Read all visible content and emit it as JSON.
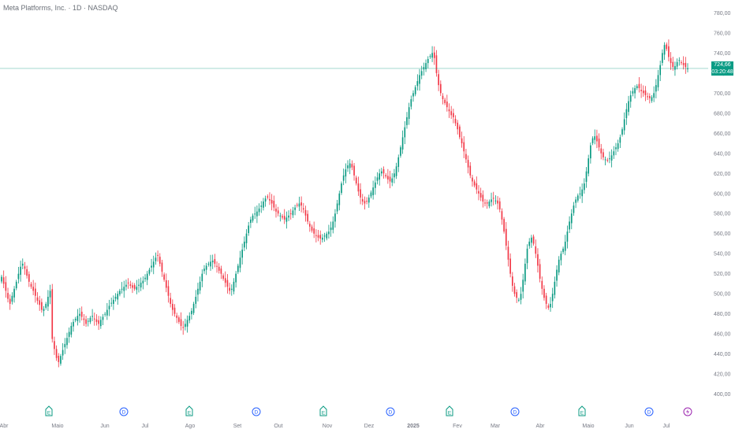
{
  "chart_data": {
    "type": "candlestick",
    "title": "Meta Platforms, Inc. · 1D · NASDAQ",
    "y_ticks": [
      780,
      760,
      740,
      720,
      700,
      680,
      660,
      640,
      620,
      600,
      580,
      560,
      540,
      520,
      500,
      480,
      460,
      440,
      420,
      400
    ],
    "y_tick_labels": [
      "780,00",
      "760,00",
      "740,00",
      "720,00",
      "700,00",
      "680,00",
      "660,00",
      "640,00",
      "620,00",
      "600,00",
      "580,00",
      "560,00",
      "540,00",
      "520,00",
      "500,00",
      "480,00",
      "460,00",
      "440,00",
      "420,00",
      "400,00"
    ],
    "ylim": [
      395,
      785
    ],
    "x_labels": [
      "Abr",
      "Maio",
      "Jun",
      "Jul",
      "Ago",
      "Set",
      "Out",
      "Nov",
      "Dez",
      "2025",
      "Fev",
      "Mar",
      "Abr",
      "Maio",
      "Jun",
      "Jul"
    ],
    "last_price": 724.66,
    "last_price_label": "724,66",
    "countdown": "03:20:48",
    "up_color": "#089981",
    "down_color": "#f23645",
    "events": [
      "E",
      "D",
      "E",
      "D",
      "E",
      "D",
      "E",
      "D",
      "E",
      "D",
      "flash"
    ],
    "closes": [
      517,
      510,
      503,
      495,
      490,
      498,
      505,
      512,
      520,
      527,
      530,
      525,
      518,
      512,
      507,
      503,
      498,
      493,
      489,
      484,
      485,
      490,
      497,
      503,
      455,
      445,
      436,
      432,
      438,
      444,
      450,
      456,
      462,
      468,
      472,
      475,
      478,
      480,
      477,
      474,
      470,
      473,
      476,
      478,
      475,
      472,
      470,
      474,
      477,
      480,
      484,
      488,
      491,
      494,
      497,
      500,
      503,
      505,
      507,
      509,
      511,
      508,
      506,
      505,
      507,
      509,
      511,
      513,
      516,
      520,
      524,
      528,
      532,
      536,
      538,
      530,
      522,
      514,
      506,
      498,
      490,
      484,
      480,
      476,
      472,
      468,
      466,
      470,
      474,
      478,
      483,
      490,
      497,
      505,
      512,
      520,
      525,
      528,
      530,
      532,
      533,
      530,
      527,
      523,
      520,
      515,
      511,
      507,
      503,
      505,
      512,
      520,
      528,
      536,
      544,
      552,
      560,
      568,
      574,
      578,
      580,
      582,
      585,
      588,
      592,
      595,
      596,
      593,
      590,
      586,
      582,
      580,
      578,
      576,
      574,
      576,
      578,
      580,
      583,
      586,
      588,
      590,
      588,
      584,
      578,
      572,
      567,
      563,
      560,
      558,
      556,
      555,
      556,
      558,
      560,
      562,
      566,
      572,
      580,
      590,
      600,
      610,
      618,
      624,
      628,
      630,
      626,
      618,
      610,
      602,
      596,
      592,
      590,
      592,
      596,
      601,
      606,
      611,
      616,
      620,
      622,
      620,
      617,
      614,
      612,
      615,
      620,
      627,
      636,
      646,
      656,
      666,
      676,
      686,
      694,
      700,
      706,
      712,
      718,
      722,
      726,
      730,
      734,
      737,
      740,
      735,
      720,
      708,
      700,
      694,
      690,
      686,
      682,
      678,
      676,
      670,
      664,
      656,
      650,
      642,
      634,
      626,
      618,
      612,
      608,
      604,
      600,
      596,
      592,
      590,
      590,
      592,
      594,
      595,
      593,
      590,
      584,
      574,
      562,
      548,
      534,
      520,
      508,
      500,
      496,
      494,
      500,
      514,
      530,
      545,
      552,
      556,
      550,
      540,
      528,
      515,
      505,
      496,
      490,
      486,
      490,
      500,
      512,
      524,
      534,
      540,
      545,
      552,
      562,
      572,
      580,
      588,
      594,
      598,
      600,
      604,
      610,
      622,
      635,
      648,
      655,
      657,
      652,
      646,
      640,
      636,
      634,
      633,
      635,
      638,
      642,
      646,
      650,
      656,
      664,
      674,
      684,
      692,
      698,
      702,
      705,
      707,
      705,
      702,
      700,
      698,
      696,
      695,
      696,
      700,
      708,
      718,
      728,
      740,
      748,
      744,
      736,
      730,
      726,
      727,
      731,
      733,
      730,
      728,
      726,
      724.66
    ]
  }
}
